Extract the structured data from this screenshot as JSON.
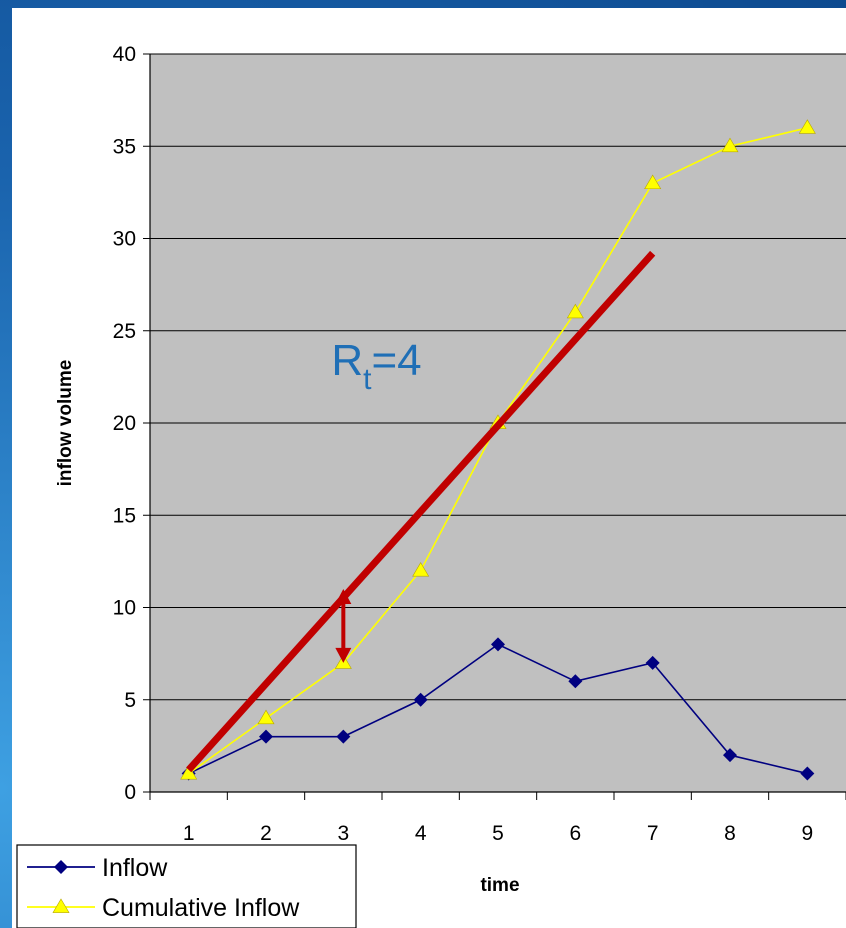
{
  "chart_data": {
    "type": "line",
    "title": "",
    "xlabel": "time",
    "ylabel": "inflow volume",
    "x": [
      1,
      2,
      3,
      4,
      5,
      6,
      7,
      8,
      9
    ],
    "xticks": [
      "1",
      "2",
      "3",
      "4",
      "5",
      "6",
      "7",
      "8",
      "9"
    ],
    "yticks": [
      "0",
      "5",
      "10",
      "15",
      "20",
      "25",
      "30",
      "35",
      "40"
    ],
    "ylim": [
      0,
      40
    ],
    "grid": true,
    "legend_position": "bottom-left",
    "series": [
      {
        "name": "Inflow",
        "values": [
          1,
          3,
          3,
          5,
          8,
          6,
          7,
          2,
          1
        ],
        "color": "#000080",
        "marker": "diamond"
      },
      {
        "name": "Cumulative Inflow",
        "values": [
          1,
          4,
          7,
          12,
          20,
          26,
          33,
          35,
          36
        ],
        "color": "#ffff00",
        "marker": "triangle"
      }
    ],
    "annotations": {
      "rate_line": {
        "x_start": 1,
        "y_start": 1.2,
        "x_end": 7,
        "y_end": 29.2,
        "color": "#c00000"
      },
      "gap_arrow": {
        "x": 3,
        "y_top": 11,
        "y_bottom": 7,
        "color": "#c00000"
      },
      "rate_label": {
        "main": "R",
        "subscript": "t",
        "suffix": "=4",
        "x": 3,
        "y": 22.6,
        "color": "#1f6fb6"
      }
    },
    "colors": {
      "plot_background": "#c0c0c0",
      "background": "#1f6fb6"
    }
  }
}
